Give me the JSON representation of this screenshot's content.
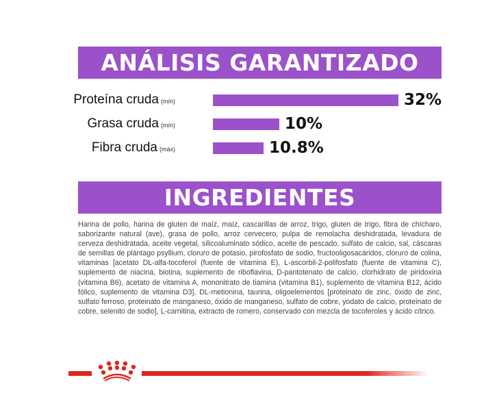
{
  "analysis": {
    "title": "ANÁLISIS GARANTIZADO",
    "bar_color": "#9b51c9",
    "rows": [
      {
        "label": "Proteína cruda",
        "qualifier": "(mín)",
        "value": 32,
        "value_label": "32%"
      },
      {
        "label": "Grasa cruda",
        "qualifier": "(mín)",
        "value": 10,
        "value_label": "10%"
      },
      {
        "label": "Fibra cruda",
        "qualifier": "(máx)",
        "value": 10.8,
        "value_label": "10.8%"
      }
    ]
  },
  "ingredients": {
    "title": "INGREDIENTES",
    "text": "Harina de pollo, harina de gluten de maíz, maíz, cascarillas de arroz, trigo, gluten de trigo, fibra de chícharo, saborizante natural (ave), grasa de pollo, arroz cervecero, pulpa de remolacha deshidratada, levadura de cerveza deshidratada, aceite vegetal, silicoaluminato sódico, aceite de pescado, sulfato de calcio, sal, cáscaras de semillas de plántago psyllium, cloruro de potasio, pirofosfato de sodio, fructooligosacáridos, cloruro de colina, vitaminas [acetato DL-alfa-tocoferol (fuente de vitamina E), L-ascorbil-2-polifosfato (fuente de vitamina C), suplemento de niacina, biotina, suplemento de riboflavina, D-pantotenato de calcio, clorhidrato de piridoxina (vitamina B6), acetato de vitamina A, mononitrato de tiamina (vitamina B1), suplemento de vitamina B12, ácido fólico, suplemento de vitamina D3], DL-metionina, taurina, oligoelementos [proteinato de zinc, óxido de zinc, sulfato ferroso, proteinato de manganeso, óxido de manganeso, sulfato de cobre, yodato de calcio, proteinato de cobre, selenito de sodio], L-carnitina, extracto de romero, conservado con mezcla de tocoferoles y ácido cítrico."
  },
  "footer": {
    "logo": "royal-canin-crown-icon",
    "brand_color": "#e0261f"
  }
}
